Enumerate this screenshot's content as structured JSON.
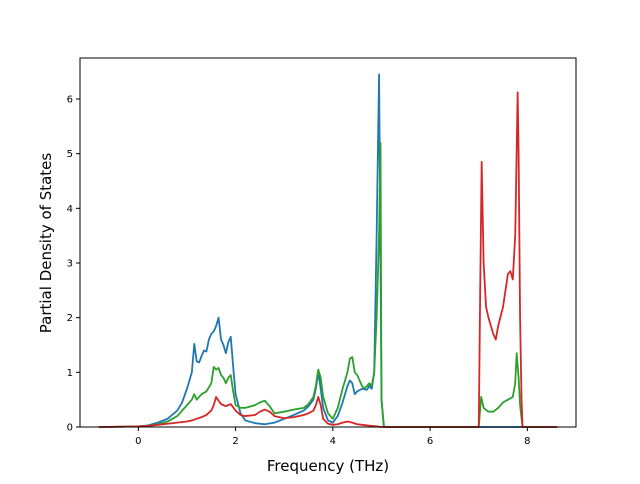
{
  "chart_data": {
    "type": "line",
    "title": "",
    "xlabel": "Frequency (THz)",
    "ylabel": "Partial Density of States",
    "xlim": [
      -1.2,
      9.0
    ],
    "ylim": [
      0,
      6.75
    ],
    "xticks": [
      0,
      2,
      4,
      6,
      8
    ],
    "yticks": [
      0,
      1,
      2,
      3,
      4,
      5,
      6
    ],
    "grid": false,
    "legend": "none",
    "series": [
      {
        "color": "#1f77b4",
        "x": [
          -0.8,
          0.0,
          0.2,
          0.4,
          0.6,
          0.8,
          0.9,
          1.0,
          1.1,
          1.15,
          1.2,
          1.25,
          1.3,
          1.35,
          1.4,
          1.45,
          1.5,
          1.55,
          1.6,
          1.65,
          1.7,
          1.75,
          1.8,
          1.85,
          1.9,
          1.95,
          2.0,
          2.1,
          2.2,
          2.4,
          2.6,
          2.8,
          3.0,
          3.2,
          3.4,
          3.5,
          3.6,
          3.65,
          3.7,
          3.75,
          3.8,
          3.9,
          4.0,
          4.1,
          4.2,
          4.3,
          4.35,
          4.4,
          4.45,
          4.5,
          4.6,
          4.7,
          4.75,
          4.8,
          4.85,
          4.9,
          4.95,
          4.98,
          5.0,
          5.05,
          7.0,
          8.6
        ],
        "y": [
          0,
          0.01,
          0.03,
          0.08,
          0.15,
          0.3,
          0.45,
          0.7,
          1.0,
          1.52,
          1.2,
          1.18,
          1.3,
          1.4,
          1.38,
          1.6,
          1.7,
          1.75,
          1.85,
          2.0,
          1.6,
          1.5,
          1.35,
          1.55,
          1.65,
          1.1,
          0.6,
          0.25,
          0.12,
          0.07,
          0.05,
          0.08,
          0.15,
          0.22,
          0.3,
          0.38,
          0.5,
          0.7,
          1.0,
          0.7,
          0.35,
          0.12,
          0.08,
          0.2,
          0.45,
          0.75,
          0.85,
          0.8,
          0.6,
          0.65,
          0.7,
          0.68,
          0.75,
          0.7,
          1.0,
          3.5,
          6.45,
          3.0,
          0.5,
          0,
          0,
          0
        ]
      },
      {
        "color": "#2ca02c",
        "x": [
          -0.8,
          0.0,
          0.2,
          0.4,
          0.6,
          0.8,
          0.9,
          1.0,
          1.1,
          1.15,
          1.2,
          1.25,
          1.3,
          1.4,
          1.5,
          1.55,
          1.6,
          1.65,
          1.7,
          1.75,
          1.8,
          1.85,
          1.9,
          1.95,
          2.0,
          2.1,
          2.2,
          2.4,
          2.5,
          2.6,
          2.7,
          2.8,
          3.0,
          3.2,
          3.4,
          3.5,
          3.6,
          3.65,
          3.7,
          3.75,
          3.8,
          3.9,
          4.0,
          4.1,
          4.2,
          4.3,
          4.35,
          4.4,
          4.45,
          4.5,
          4.6,
          4.65,
          4.7,
          4.75,
          4.8,
          4.85,
          4.9,
          4.95,
          4.98,
          5.0,
          5.05,
          7.0,
          7.05,
          7.1,
          7.2,
          7.3,
          7.4,
          7.5,
          7.6,
          7.7,
          7.75,
          7.78,
          7.82,
          7.85,
          7.9,
          8.6
        ],
        "y": [
          0,
          0.01,
          0.02,
          0.05,
          0.1,
          0.2,
          0.3,
          0.4,
          0.5,
          0.6,
          0.5,
          0.55,
          0.6,
          0.65,
          0.8,
          1.1,
          1.05,
          1.08,
          0.95,
          0.9,
          0.8,
          0.9,
          0.95,
          0.65,
          0.4,
          0.35,
          0.35,
          0.4,
          0.45,
          0.48,
          0.38,
          0.25,
          0.28,
          0.32,
          0.35,
          0.42,
          0.55,
          0.75,
          1.05,
          0.9,
          0.55,
          0.25,
          0.15,
          0.35,
          0.7,
          1.0,
          1.25,
          1.28,
          1.0,
          0.95,
          0.75,
          0.7,
          0.75,
          0.8,
          0.75,
          1.0,
          2.0,
          3.5,
          5.2,
          0.5,
          0,
          0,
          0.55,
          0.35,
          0.28,
          0.28,
          0.35,
          0.45,
          0.5,
          0.55,
          0.8,
          1.35,
          0.9,
          0.4,
          0,
          0
        ]
      },
      {
        "color": "#d62728",
        "x": [
          -0.8,
          0.0,
          0.2,
          0.4,
          0.6,
          0.8,
          1.0,
          1.1,
          1.2,
          1.3,
          1.4,
          1.5,
          1.55,
          1.6,
          1.65,
          1.7,
          1.75,
          1.8,
          1.85,
          1.9,
          2.0,
          2.1,
          2.2,
          2.4,
          2.5,
          2.6,
          2.7,
          2.8,
          3.0,
          3.2,
          3.4,
          3.5,
          3.6,
          3.65,
          3.7,
          3.75,
          3.8,
          3.9,
          4.0,
          4.1,
          4.2,
          4.3,
          4.4,
          4.5,
          4.6,
          4.7,
          4.8,
          4.9,
          5.0,
          7.0,
          7.03,
          7.06,
          7.1,
          7.15,
          7.2,
          7.3,
          7.35,
          7.4,
          7.5,
          7.6,
          7.65,
          7.7,
          7.75,
          7.8,
          7.82,
          7.85,
          7.88,
          7.9,
          8.6
        ],
        "y": [
          0,
          0.01,
          0.02,
          0.04,
          0.06,
          0.08,
          0.1,
          0.12,
          0.15,
          0.18,
          0.22,
          0.3,
          0.4,
          0.55,
          0.48,
          0.42,
          0.4,
          0.38,
          0.4,
          0.42,
          0.3,
          0.22,
          0.2,
          0.22,
          0.28,
          0.32,
          0.28,
          0.2,
          0.16,
          0.18,
          0.22,
          0.25,
          0.3,
          0.4,
          0.55,
          0.4,
          0.15,
          0.06,
          0.04,
          0.05,
          0.08,
          0.1,
          0.08,
          0.05,
          0.04,
          0.03,
          0.02,
          0.01,
          0,
          0,
          2.5,
          4.85,
          3.0,
          2.2,
          2.0,
          1.7,
          1.6,
          1.85,
          2.2,
          2.8,
          2.85,
          2.7,
          3.5,
          6.12,
          5.0,
          2.0,
          0.5,
          0,
          0
        ]
      }
    ]
  }
}
